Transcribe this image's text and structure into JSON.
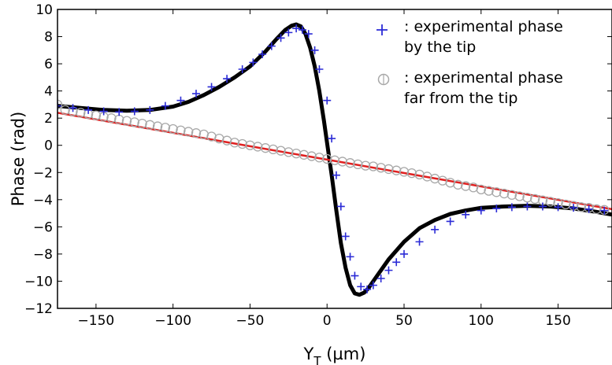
{
  "chart_data": {
    "type": "scatter",
    "xlabel": "Y",
    "xlabel_sub": "T",
    "xlabel_unit": " (µm)",
    "ylabel": "Phase (rad)",
    "xlim": [
      -175,
      185
    ],
    "ylim": [
      -12,
      10
    ],
    "xticks": [
      -150,
      -100,
      -50,
      0,
      50,
      100,
      150
    ],
    "yticks": [
      -12,
      -10,
      -8,
      -6,
      -4,
      -2,
      0,
      2,
      4,
      6,
      8,
      10
    ],
    "xtick_labels": [
      "−150",
      "−100",
      "−50",
      "0",
      "50",
      "100",
      "150"
    ],
    "ytick_labels": [
      "−12",
      "−10",
      "−8",
      "−6",
      "−4",
      "−2",
      "0",
      "2",
      "4",
      "6",
      "8",
      "10"
    ],
    "legend_position": "top-right",
    "series": [
      {
        "name": ": experimental phase by the tip",
        "legend_lines": [
          ": experimental phase",
          "by the tip"
        ],
        "marker": "plus",
        "color": "#2b2bd6",
        "x": [
          -175,
          -165,
          -155,
          -145,
          -135,
          -125,
          -115,
          -105,
          -95,
          -85,
          -75,
          -65,
          -55,
          -48,
          -42,
          -36,
          -30,
          -25,
          -20,
          -16,
          -12,
          -8,
          -5,
          0,
          3,
          6,
          9,
          12,
          15,
          18,
          22,
          26,
          30,
          35,
          40,
          45,
          50,
          60,
          70,
          80,
          90,
          100,
          110,
          120,
          130,
          140,
          150,
          160,
          170,
          180
        ],
        "y": [
          2.9,
          2.75,
          2.6,
          2.5,
          2.45,
          2.5,
          2.6,
          2.9,
          3.3,
          3.8,
          4.3,
          4.9,
          5.6,
          6.1,
          6.7,
          7.3,
          7.9,
          8.3,
          8.6,
          8.5,
          8.2,
          7.0,
          5.6,
          3.3,
          0.5,
          -2.2,
          -4.5,
          -6.7,
          -8.2,
          -9.6,
          -10.4,
          -10.6,
          -10.3,
          -9.8,
          -9.2,
          -8.6,
          -8.0,
          -7.1,
          -6.2,
          -5.6,
          -5.1,
          -4.8,
          -4.65,
          -4.55,
          -4.5,
          -4.5,
          -4.55,
          -4.6,
          -4.7,
          -4.8
        ]
      },
      {
        "name": ": experimental phase far from the tip",
        "legend_lines": [
          ": experimental phase",
          "far from the tip"
        ],
        "marker": "circle",
        "color": "#a8a8a8",
        "x": [
          -175,
          -170,
          -165,
          -160,
          -155,
          -150,
          -145,
          -140,
          -135,
          -130,
          -125,
          -120,
          -115,
          -110,
          -105,
          -100,
          -95,
          -90,
          -85,
          -80,
          -75,
          -70,
          -65,
          -60,
          -55,
          -50,
          -45,
          -40,
          -35,
          -30,
          -25,
          -20,
          -15,
          -10,
          -5,
          0,
          5,
          10,
          15,
          20,
          25,
          30,
          35,
          40,
          45,
          50,
          55,
          60,
          65,
          70,
          75,
          80,
          85,
          90,
          95,
          100,
          105,
          110,
          115,
          120,
          125,
          130,
          135,
          140,
          145,
          150,
          155,
          160,
          165,
          170,
          175,
          180
        ],
        "y": [
          3.0,
          2.6,
          2.5,
          2.4,
          2.3,
          2.2,
          2.1,
          2.0,
          1.9,
          1.8,
          1.7,
          1.6,
          1.5,
          1.4,
          1.3,
          1.2,
          1.1,
          1.0,
          0.9,
          0.8,
          0.65,
          0.5,
          0.35,
          0.2,
          0.1,
          0.0,
          -0.1,
          -0.2,
          -0.3,
          -0.4,
          -0.5,
          -0.6,
          -0.7,
          -0.8,
          -0.9,
          -1.0,
          -1.1,
          -1.2,
          -1.3,
          -1.4,
          -1.5,
          -1.55,
          -1.65,
          -1.75,
          -1.85,
          -1.95,
          -2.05,
          -2.15,
          -2.3,
          -2.45,
          -2.6,
          -2.75,
          -2.9,
          -3.0,
          -3.1,
          -3.25,
          -3.35,
          -3.45,
          -3.55,
          -3.65,
          -3.75,
          -3.85,
          -3.95,
          -4.05,
          -4.15,
          -4.25,
          -4.35,
          -4.45,
          -4.55,
          -4.6,
          -4.7,
          -4.75
        ]
      },
      {
        "name": "",
        "marker": "line",
        "color": "#000000",
        "x": [
          -175,
          -160,
          -145,
          -130,
          -115,
          -100,
          -90,
          -80,
          -70,
          -60,
          -50,
          -40,
          -33,
          -27,
          -23,
          -20,
          -17,
          -14,
          -11,
          -8,
          -5,
          -2,
          0,
          3,
          6,
          9,
          12,
          15,
          18,
          21,
          24,
          27,
          30,
          35,
          40,
          50,
          60,
          70,
          80,
          90,
          100,
          115,
          130,
          145,
          160,
          175,
          185
        ],
        "y": [
          2.9,
          2.75,
          2.6,
          2.55,
          2.6,
          2.85,
          3.2,
          3.7,
          4.3,
          5.0,
          5.8,
          6.9,
          7.8,
          8.5,
          8.8,
          8.9,
          8.75,
          8.2,
          7.2,
          5.8,
          4.0,
          1.8,
          0.2,
          -2.2,
          -4.8,
          -7.2,
          -9.0,
          -10.3,
          -10.9,
          -11.0,
          -10.85,
          -10.5,
          -10.0,
          -9.2,
          -8.4,
          -7.1,
          -6.1,
          -5.5,
          -5.05,
          -4.8,
          -4.6,
          -4.5,
          -4.45,
          -4.5,
          -4.65,
          -4.9,
          -5.1
        ]
      },
      {
        "name": "",
        "marker": "line",
        "color": "#e02020",
        "x": [
          -175,
          185
        ],
        "y": [
          2.4,
          -4.7
        ]
      }
    ]
  }
}
